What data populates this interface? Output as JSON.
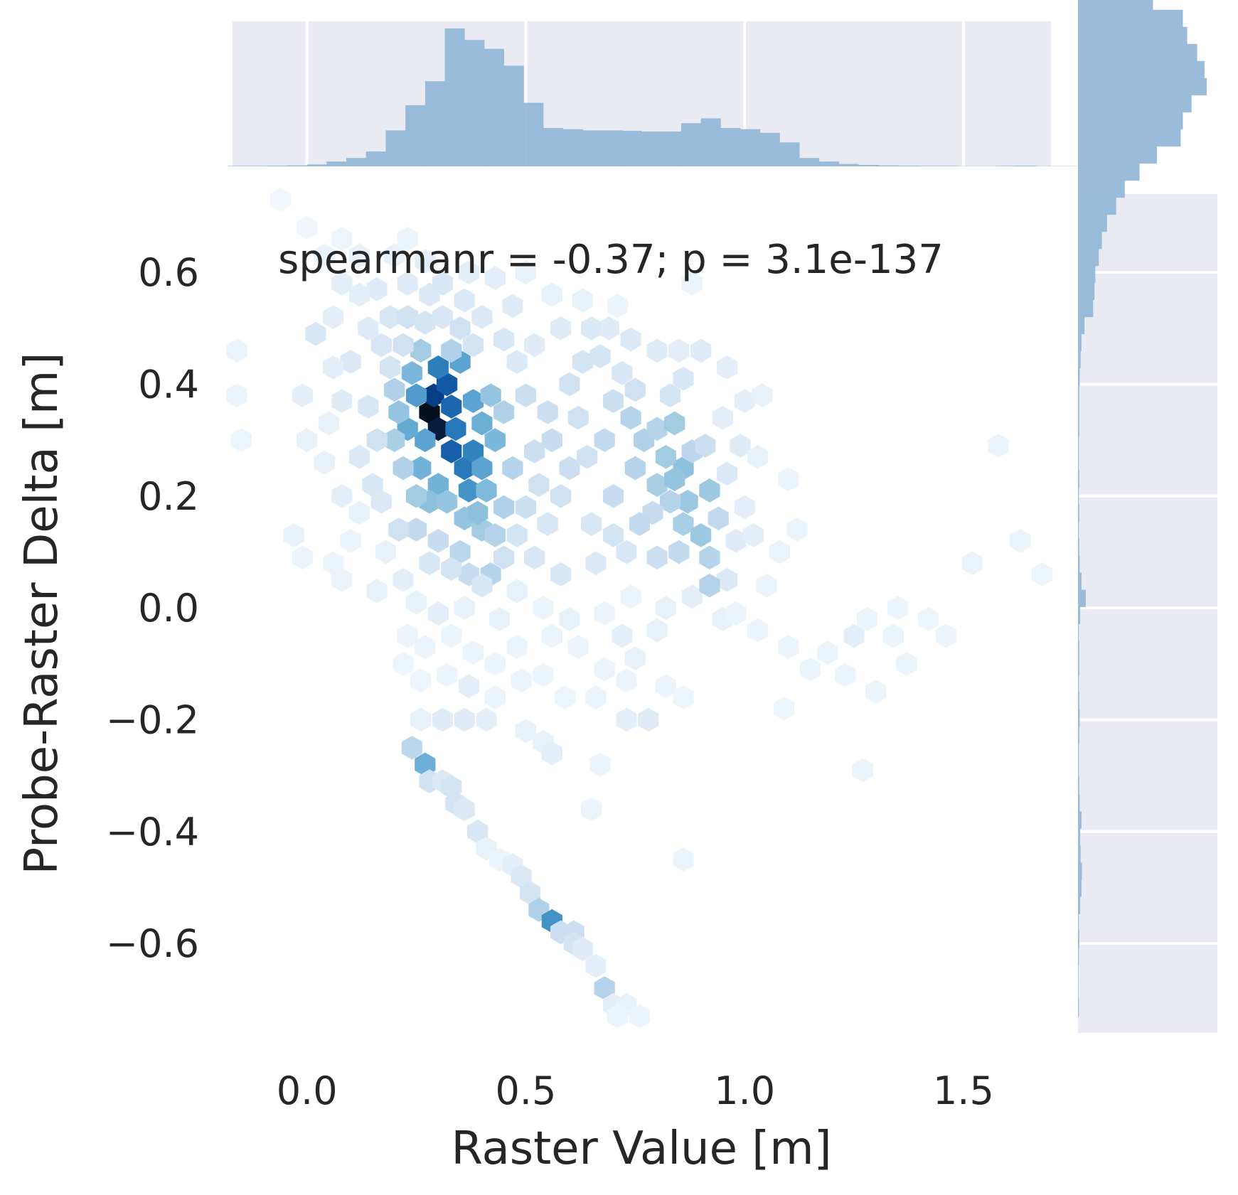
{
  "chart_data": {
    "type": "hexbin",
    "annotation": "spearmanr = -0.37; p = 3.1e-137",
    "xlabel": "Raster Value [m]",
    "ylabel": "Probe-Raster Delta [m]",
    "xlim": [
      -0.17,
      1.7
    ],
    "ylim": [
      -0.76,
      0.74
    ],
    "xticks": [
      0.0,
      0.5,
      1.0,
      1.5
    ],
    "xtick_labels": [
      "0.0",
      "0.5",
      "1.0",
      "1.5"
    ],
    "yticks": [
      -0.6,
      -0.4,
      -0.2,
      0.0,
      0.2,
      0.4,
      0.6
    ],
    "ytick_labels": [
      "−0.6",
      "−0.4",
      "−0.2",
      "0.0",
      "0.2",
      "0.4",
      "0.6"
    ],
    "colormap": "Blues",
    "colors": {
      "margin_background": "#eaeaf2",
      "histogram_fill": "#95b8d8",
      "grid": "#ffffff",
      "text": "#262626",
      "darkest_bin": "#04101e"
    },
    "hexbins": [
      [
        0.28,
        0.35,
        1.0
      ],
      [
        0.3,
        0.32,
        0.98
      ],
      [
        0.29,
        0.38,
        0.9
      ],
      [
        0.33,
        0.36,
        0.78
      ],
      [
        0.32,
        0.4,
        0.82
      ],
      [
        0.34,
        0.32,
        0.72
      ],
      [
        0.33,
        0.28,
        0.8
      ],
      [
        0.36,
        0.25,
        0.72
      ],
      [
        0.3,
        0.43,
        0.7
      ],
      [
        0.38,
        0.28,
        0.68
      ],
      [
        0.37,
        0.21,
        0.62
      ],
      [
        0.25,
        0.38,
        0.58
      ],
      [
        0.27,
        0.3,
        0.55
      ],
      [
        0.26,
        0.25,
        0.48
      ],
      [
        0.23,
        0.32,
        0.52
      ],
      [
        0.4,
        0.33,
        0.5
      ],
      [
        0.4,
        0.25,
        0.55
      ],
      [
        0.38,
        0.37,
        0.55
      ],
      [
        0.35,
        0.44,
        0.55
      ],
      [
        0.24,
        0.42,
        0.46
      ],
      [
        0.3,
        0.22,
        0.48
      ],
      [
        0.28,
        0.19,
        0.42
      ],
      [
        0.32,
        0.19,
        0.4
      ],
      [
        0.41,
        0.21,
        0.45
      ],
      [
        0.43,
        0.3,
        0.46
      ],
      [
        0.42,
        0.38,
        0.4
      ],
      [
        0.36,
        0.16,
        0.4
      ],
      [
        0.4,
        0.14,
        0.36
      ],
      [
        0.39,
        0.17,
        0.42
      ],
      [
        0.21,
        0.35,
        0.4
      ],
      [
        0.2,
        0.3,
        0.34
      ],
      [
        0.22,
        0.25,
        0.32
      ],
      [
        0.25,
        0.2,
        0.36
      ],
      [
        0.2,
        0.39,
        0.32
      ],
      [
        0.26,
        0.46,
        0.36
      ],
      [
        0.33,
        0.46,
        0.32
      ],
      [
        0.45,
        0.35,
        0.32
      ],
      [
        0.47,
        0.25,
        0.3
      ],
      [
        0.45,
        0.18,
        0.32
      ],
      [
        0.43,
        0.13,
        0.3
      ],
      [
        0.86,
        0.25,
        0.42
      ],
      [
        0.87,
        0.19,
        0.38
      ],
      [
        0.92,
        0.21,
        0.38
      ],
      [
        0.86,
        0.15,
        0.34
      ],
      [
        0.9,
        0.13,
        0.38
      ],
      [
        0.82,
        0.27,
        0.36
      ],
      [
        0.8,
        0.22,
        0.34
      ],
      [
        0.77,
        0.3,
        0.32
      ],
      [
        0.8,
        0.32,
        0.3
      ],
      [
        0.84,
        0.33,
        0.36
      ],
      [
        0.75,
        0.25,
        0.3
      ],
      [
        0.74,
        0.34,
        0.3
      ],
      [
        0.68,
        0.3,
        0.26
      ],
      [
        0.7,
        0.2,
        0.24
      ],
      [
        0.88,
        0.28,
        0.28
      ],
      [
        0.92,
        0.09,
        0.3
      ],
      [
        0.85,
        0.1,
        0.26
      ],
      [
        0.83,
        0.19,
        0.3
      ],
      [
        0.84,
        0.23,
        0.4
      ],
      [
        0.79,
        0.17,
        0.24
      ],
      [
        0.76,
        0.15,
        0.26
      ],
      [
        0.8,
        0.09,
        0.22
      ],
      [
        0.94,
        0.16,
        0.26
      ],
      [
        0.91,
        0.29,
        0.22
      ],
      [
        0.7,
        0.37,
        0.22
      ],
      [
        0.56,
        0.3,
        0.24
      ],
      [
        0.6,
        0.25,
        0.22
      ],
      [
        0.55,
        0.35,
        0.22
      ],
      [
        0.52,
        0.28,
        0.22
      ],
      [
        0.58,
        0.2,
        0.2
      ],
      [
        0.62,
        0.34,
        0.2
      ],
      [
        0.64,
        0.27,
        0.2
      ],
      [
        0.5,
        0.38,
        0.22
      ],
      [
        0.6,
        0.4,
        0.2
      ],
      [
        0.63,
        0.44,
        0.18
      ],
      [
        0.67,
        0.45,
        0.18
      ],
      [
        0.72,
        0.42,
        0.16
      ],
      [
        0.75,
        0.39,
        0.2
      ],
      [
        0.83,
        0.38,
        0.18
      ],
      [
        0.86,
        0.41,
        0.16
      ],
      [
        0.53,
        0.22,
        0.2
      ],
      [
        0.5,
        0.18,
        0.22
      ],
      [
        0.55,
        0.15,
        0.16
      ],
      [
        0.48,
        0.13,
        0.18
      ],
      [
        0.65,
        0.15,
        0.16
      ],
      [
        0.7,
        0.13,
        0.18
      ],
      [
        0.73,
        0.1,
        0.16
      ],
      [
        0.66,
        0.08,
        0.14
      ],
      [
        0.58,
        0.06,
        0.16
      ],
      [
        0.52,
        0.09,
        0.16
      ],
      [
        0.35,
        0.1,
        0.28
      ],
      [
        0.3,
        0.12,
        0.24
      ],
      [
        0.25,
        0.14,
        0.26
      ],
      [
        0.21,
        0.14,
        0.2
      ],
      [
        0.37,
        0.06,
        0.24
      ],
      [
        0.42,
        0.06,
        0.3
      ],
      [
        0.33,
        0.07,
        0.18
      ],
      [
        0.28,
        0.08,
        0.16
      ],
      [
        0.45,
        0.09,
        0.2
      ],
      [
        0.4,
        0.04,
        0.16
      ],
      [
        0.16,
        0.3,
        0.2
      ],
      [
        0.14,
        0.36,
        0.16
      ],
      [
        0.12,
        0.27,
        0.14
      ],
      [
        0.15,
        0.22,
        0.16
      ],
      [
        0.17,
        0.19,
        0.14
      ],
      [
        0.19,
        0.43,
        0.18
      ],
      [
        0.22,
        0.47,
        0.2
      ],
      [
        0.17,
        0.47,
        0.16
      ],
      [
        0.1,
        0.44,
        0.14
      ],
      [
        0.14,
        0.5,
        0.12
      ],
      [
        0.19,
        0.52,
        0.16
      ],
      [
        0.23,
        0.52,
        0.2
      ],
      [
        0.27,
        0.51,
        0.18
      ],
      [
        0.31,
        0.52,
        0.16
      ],
      [
        0.28,
        0.56,
        0.14
      ],
      [
        0.35,
        0.5,
        0.2
      ],
      [
        0.38,
        0.47,
        0.18
      ],
      [
        0.4,
        0.52,
        0.14
      ],
      [
        0.45,
        0.48,
        0.16
      ],
      [
        0.48,
        0.44,
        0.14
      ],
      [
        0.36,
        0.55,
        0.14
      ],
      [
        0.31,
        0.58,
        0.16
      ],
      [
        0.23,
        0.58,
        0.12
      ],
      [
        0.16,
        0.57,
        0.12
      ],
      [
        0.12,
        0.56,
        0.1
      ],
      [
        0.08,
        0.58,
        0.1
      ],
      [
        0.06,
        0.52,
        0.1
      ],
      [
        0.02,
        0.49,
        0.16
      ],
      [
        -0.01,
        0.38,
        0.1
      ],
      [
        0.0,
        0.3,
        0.08
      ],
      [
        -0.16,
        0.46,
        0.06
      ],
      [
        -0.16,
        0.38,
        0.06
      ],
      [
        -0.15,
        0.3,
        0.05
      ],
      [
        0.06,
        0.43,
        0.1
      ],
      [
        0.08,
        0.37,
        0.12
      ],
      [
        0.05,
        0.33,
        0.08
      ],
      [
        0.04,
        0.26,
        0.08
      ],
      [
        0.08,
        0.2,
        0.1
      ],
      [
        0.12,
        0.17,
        0.08
      ],
      [
        0.1,
        0.12,
        0.06
      ],
      [
        -0.03,
        0.13,
        0.08
      ],
      [
        -0.01,
        0.09,
        0.06
      ],
      [
        0.06,
        0.08,
        0.06
      ],
      [
        0.08,
        0.05,
        0.06
      ],
      [
        0.18,
        0.1,
        0.08
      ],
      [
        0.22,
        0.05,
        0.1
      ],
      [
        0.16,
        0.03,
        0.08
      ],
      [
        0.25,
        0.01,
        0.08
      ],
      [
        0.3,
        -0.01,
        0.1
      ],
      [
        0.36,
        0.0,
        0.08
      ],
      [
        0.44,
        -0.02,
        0.08
      ],
      [
        0.48,
        0.03,
        0.08
      ],
      [
        0.54,
        0.0,
        0.06
      ],
      [
        0.6,
        -0.02,
        0.08
      ],
      [
        0.68,
        -0.01,
        0.06
      ],
      [
        0.74,
        0.02,
        0.06
      ],
      [
        0.82,
        0.0,
        0.08
      ],
      [
        0.88,
        0.02,
        0.1
      ],
      [
        0.95,
        -0.02,
        0.08
      ],
      [
        0.96,
        0.05,
        0.14
      ],
      [
        0.92,
        0.04,
        0.3
      ],
      [
        0.98,
        0.12,
        0.12
      ],
      [
        1.0,
        0.18,
        0.1
      ],
      [
        1.02,
        0.13,
        0.1
      ],
      [
        0.96,
        0.24,
        0.14
      ],
      [
        0.99,
        0.29,
        0.12
      ],
      [
        1.03,
        0.27,
        0.08
      ],
      [
        0.95,
        0.34,
        0.1
      ],
      [
        1.0,
        0.37,
        0.1
      ],
      [
        1.04,
        0.38,
        0.08
      ],
      [
        0.96,
        0.43,
        0.1
      ],
      [
        0.9,
        0.46,
        0.12
      ],
      [
        0.85,
        0.46,
        0.1
      ],
      [
        0.8,
        0.46,
        0.12
      ],
      [
        0.74,
        0.48,
        0.14
      ],
      [
        0.69,
        0.5,
        0.12
      ],
      [
        0.65,
        0.5,
        0.14
      ],
      [
        0.58,
        0.5,
        0.12
      ],
      [
        0.52,
        0.47,
        0.12
      ],
      [
        0.47,
        0.54,
        0.12
      ],
      [
        0.43,
        0.59,
        0.1
      ],
      [
        0.37,
        0.6,
        0.1
      ],
      [
        0.27,
        0.62,
        0.1
      ],
      [
        0.2,
        0.63,
        0.08
      ],
      [
        0.12,
        0.63,
        0.08
      ],
      [
        0.04,
        0.63,
        0.06
      ],
      [
        0.0,
        0.68,
        0.04
      ],
      [
        0.23,
        0.66,
        0.06
      ],
      [
        0.08,
        0.66,
        0.05
      ],
      [
        -0.06,
        0.73,
        0.03
      ],
      [
        0.5,
        0.6,
        0.08
      ],
      [
        0.56,
        0.56,
        0.08
      ],
      [
        0.63,
        0.55,
        0.08
      ],
      [
        0.71,
        0.54,
        0.06
      ],
      [
        0.88,
        0.58,
        0.06
      ],
      [
        1.1,
        0.23,
        0.06
      ],
      [
        1.12,
        0.14,
        0.06
      ],
      [
        1.08,
        0.1,
        0.06
      ],
      [
        1.05,
        0.04,
        0.06
      ],
      [
        1.1,
        -0.07,
        0.06
      ],
      [
        1.03,
        -0.04,
        0.06
      ],
      [
        0.98,
        -0.01,
        0.06
      ],
      [
        1.19,
        -0.08,
        0.06
      ],
      [
        1.25,
        -0.05,
        0.1
      ],
      [
        1.28,
        -0.02,
        0.06
      ],
      [
        1.34,
        -0.05,
        0.06
      ],
      [
        1.37,
        -0.1,
        0.06
      ],
      [
        1.46,
        -0.05,
        0.06
      ],
      [
        1.3,
        -0.15,
        0.06
      ],
      [
        1.23,
        -0.12,
        0.06
      ],
      [
        1.15,
        -0.11,
        0.06
      ],
      [
        1.09,
        -0.18,
        0.05
      ],
      [
        1.52,
        0.08,
        0.06
      ],
      [
        1.58,
        0.29,
        0.06
      ],
      [
        1.63,
        0.12,
        0.06
      ],
      [
        1.68,
        0.06,
        0.05
      ],
      [
        1.35,
        0.0,
        0.06
      ],
      [
        1.42,
        -0.02,
        0.05
      ],
      [
        1.27,
        -0.29,
        0.06
      ],
      [
        0.72,
        -0.05,
        0.1
      ],
      [
        0.75,
        -0.09,
        0.08
      ],
      [
        0.8,
        -0.04,
        0.08
      ],
      [
        0.68,
        -0.11,
        0.06
      ],
      [
        0.62,
        -0.07,
        0.06
      ],
      [
        0.56,
        -0.05,
        0.06
      ],
      [
        0.48,
        -0.07,
        0.06
      ],
      [
        0.43,
        -0.1,
        0.06
      ],
      [
        0.38,
        -0.08,
        0.06
      ],
      [
        0.33,
        -0.05,
        0.06
      ],
      [
        0.27,
        -0.07,
        0.06
      ],
      [
        0.23,
        -0.05,
        0.06
      ],
      [
        0.22,
        -0.1,
        0.05
      ],
      [
        0.26,
        -0.13,
        0.05
      ],
      [
        0.32,
        -0.12,
        0.06
      ],
      [
        0.37,
        -0.14,
        0.1
      ],
      [
        0.43,
        -0.16,
        0.06
      ],
      [
        0.49,
        -0.13,
        0.06
      ],
      [
        0.54,
        -0.12,
        0.06
      ],
      [
        0.59,
        -0.16,
        0.05
      ],
      [
        0.66,
        -0.16,
        0.06
      ],
      [
        0.73,
        -0.13,
        0.06
      ],
      [
        0.82,
        -0.14,
        0.06
      ],
      [
        0.86,
        -0.16,
        0.05
      ],
      [
        0.26,
        -0.2,
        0.08
      ],
      [
        0.31,
        -0.2,
        0.12
      ],
      [
        0.36,
        -0.2,
        0.12
      ],
      [
        0.41,
        -0.2,
        0.1
      ],
      [
        0.5,
        -0.22,
        0.08
      ],
      [
        0.54,
        -0.24,
        0.08
      ],
      [
        0.56,
        -0.26,
        0.1
      ],
      [
        0.73,
        -0.2,
        0.1
      ],
      [
        0.78,
        -0.2,
        0.12
      ],
      [
        0.67,
        -0.28,
        0.06
      ],
      [
        0.65,
        -0.36,
        0.06
      ],
      [
        0.86,
        -0.45,
        0.06
      ],
      [
        0.24,
        -0.25,
        0.28
      ],
      [
        0.27,
        -0.28,
        0.5
      ],
      [
        0.28,
        -0.31,
        0.2
      ],
      [
        0.31,
        -0.31,
        0.14
      ],
      [
        0.33,
        -0.32,
        0.18
      ],
      [
        0.34,
        -0.35,
        0.18
      ],
      [
        0.36,
        -0.36,
        0.14
      ],
      [
        0.39,
        -0.4,
        0.16
      ],
      [
        0.41,
        -0.43,
        0.08
      ],
      [
        0.44,
        -0.45,
        0.06
      ],
      [
        0.47,
        -0.46,
        0.1
      ],
      [
        0.49,
        -0.48,
        0.14
      ],
      [
        0.51,
        -0.51,
        0.18
      ],
      [
        0.53,
        -0.54,
        0.32
      ],
      [
        0.56,
        -0.56,
        0.62
      ],
      [
        0.58,
        -0.58,
        0.22
      ],
      [
        0.61,
        -0.58,
        0.22
      ],
      [
        0.61,
        -0.6,
        0.18
      ],
      [
        0.63,
        -0.61,
        0.12
      ],
      [
        0.66,
        -0.64,
        0.1
      ],
      [
        0.68,
        -0.68,
        0.3
      ],
      [
        0.7,
        -0.71,
        0.1
      ],
      [
        0.73,
        -0.71,
        0.08
      ],
      [
        0.71,
        -0.73,
        0.06
      ],
      [
        0.76,
        -0.73,
        0.06
      ]
    ],
    "x_marginal": {
      "bin_start": -0.18,
      "bin_width": 0.045,
      "counts": [
        2,
        2,
        3,
        4,
        8,
        20,
        35,
        62,
        150,
        255,
        355,
        575,
        527,
        490,
        420,
        265,
        160,
        155,
        150,
        150,
        148,
        145,
        145,
        180,
        200,
        160,
        155,
        140,
        100,
        35,
        20,
        10,
        6,
        4,
        3,
        2,
        2,
        1,
        1,
        2,
        3,
        1,
        1,
        1,
        2,
        1
      ]
    },
    "y_marginal": {
      "bin_start": -0.73,
      "bin_width": 0.0305,
      "counts": [
        2,
        1,
        1,
        2,
        3,
        2,
        5,
        8,
        9,
        6,
        5,
        8,
        4,
        3,
        2,
        2,
        3,
        4,
        3,
        2,
        3,
        3,
        2,
        5,
        18,
        8,
        4,
        3,
        2,
        3,
        2,
        3,
        2,
        2,
        3,
        3,
        3,
        4,
        6,
        8,
        15,
        35,
        38,
        40,
        48,
        55,
        67,
        88,
        108,
        142,
        182,
        237,
        242,
        262,
        297,
        292,
        275,
        252,
        242,
        173,
        163,
        143,
        123,
        107,
        85,
        74,
        53,
        42,
        25,
        8,
        5,
        2
      ]
    }
  }
}
